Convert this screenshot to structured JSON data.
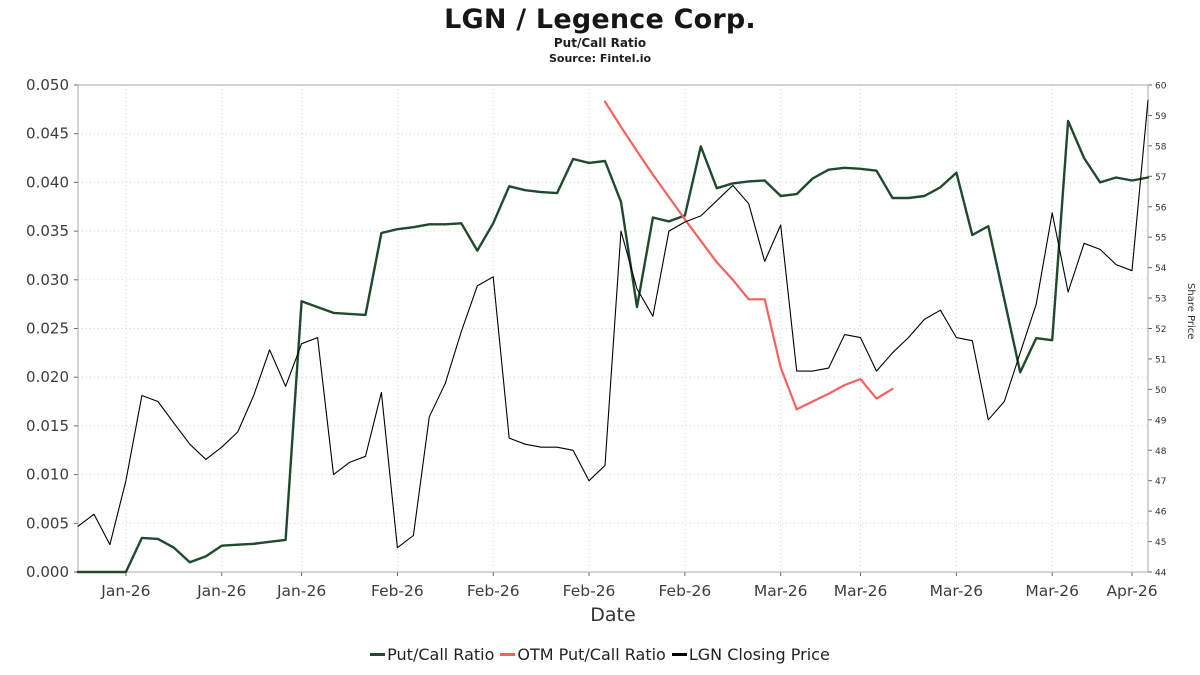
{
  "chart_data": {
    "type": "line",
    "title": "LGN / Legence Corp.",
    "subtitle": "Put/Call Ratio",
    "source": "Source: Fintel.io",
    "xlabel": "Date",
    "right_axis_label": "Share Price",
    "grid": true,
    "legend_position": "bottom",
    "left_axis": {
      "min": 0.0,
      "max": 0.05,
      "step": 0.005,
      "decimals": 3
    },
    "right_axis": {
      "min": 44,
      "max": 60,
      "step": 1
    },
    "x_ticks": [
      {
        "index": 3,
        "label": "Jan-26"
      },
      {
        "index": 9,
        "label": "Jan-26"
      },
      {
        "index": 14,
        "label": "Jan-26"
      },
      {
        "index": 20,
        "label": "Feb-26"
      },
      {
        "index": 26,
        "label": "Feb-26"
      },
      {
        "index": 32,
        "label": "Feb-26"
      },
      {
        "index": 38,
        "label": "Feb-26"
      },
      {
        "index": 44,
        "label": "Mar-26"
      },
      {
        "index": 49,
        "label": "Mar-26"
      },
      {
        "index": 55,
        "label": "Mar-26"
      },
      {
        "index": 61,
        "label": "Mar-26"
      },
      {
        "index": 66,
        "label": "Apr-26"
      }
    ],
    "series": [
      {
        "name": "Put/Call Ratio",
        "color": "#1f4a2e",
        "axis": "left",
        "width": 2.4,
        "values": [
          0,
          0,
          0,
          0,
          0.0035,
          0.0034,
          0.0025,
          0.001,
          0.0016,
          0.0027,
          0.0028,
          0.0029,
          0.0031,
          0.0033,
          0.0278,
          0.0272,
          0.0266,
          0.0265,
          0.0264,
          0.0348,
          0.0352,
          0.0354,
          0.0357,
          0.0357,
          0.0358,
          0.033,
          0.0358,
          0.0396,
          0.0392,
          0.039,
          0.0389,
          0.0424,
          0.042,
          0.0422,
          0.038,
          0.0272,
          0.0364,
          0.036,
          0.0366,
          0.0437,
          0.0394,
          0.0399,
          0.0401,
          0.0402,
          0.0386,
          0.0388,
          0.0404,
          0.0413,
          0.0415,
          0.0414,
          0.0412,
          0.0384,
          0.0384,
          0.0386,
          0.0395,
          0.041,
          0.0346,
          0.0355,
          0.028,
          0.0205,
          0.024,
          0.0238,
          0.0463,
          0.0425,
          0.04,
          0.0405,
          0.0402,
          0.0405
        ]
      },
      {
        "name": "OTM Put/Call Ratio",
        "color": "#f9615e",
        "axis": "left",
        "width": 2.2,
        "values": [
          null,
          null,
          null,
          null,
          null,
          null,
          null,
          null,
          null,
          null,
          null,
          null,
          null,
          null,
          null,
          null,
          null,
          null,
          null,
          null,
          null,
          null,
          null,
          null,
          null,
          null,
          null,
          null,
          null,
          null,
          null,
          null,
          null,
          0.0483,
          0.0457,
          0.0432,
          0.0408,
          0.0385,
          0.0362,
          0.034,
          0.0318,
          0.03,
          0.028,
          0.028,
          0.021,
          0.0167,
          0.0175,
          0.0183,
          0.0192,
          0.0198,
          0.0178,
          0.0188,
          null,
          null,
          null,
          null,
          null,
          null,
          null,
          null,
          null,
          null,
          null,
          null,
          null,
          null,
          null,
          null
        ]
      },
      {
        "name": "LGN Closing Price",
        "color": "#000000",
        "axis": "right",
        "width": 1.1,
        "values": [
          45.5,
          45.9,
          44.9,
          47.0,
          49.8,
          49.6,
          48.9,
          48.2,
          47.7,
          48.1,
          48.6,
          49.8,
          51.3,
          50.1,
          51.5,
          51.7,
          47.2,
          47.6,
          47.8,
          49.9,
          44.8,
          45.2,
          49.1,
          50.2,
          51.9,
          53.4,
          53.7,
          48.4,
          48.2,
          48.1,
          48.1,
          48.0,
          47.0,
          47.5,
          55.2,
          53.3,
          52.4,
          55.2,
          55.5,
          55.7,
          56.2,
          56.7,
          56.1,
          54.2,
          55.4,
          50.6,
          50.6,
          50.7,
          51.8,
          51.7,
          50.6,
          51.2,
          51.7,
          52.3,
          52.6,
          51.7,
          51.6,
          49.0,
          49.6,
          51.2,
          52.8,
          55.8,
          53.2,
          54.8,
          54.6,
          54.1,
          53.9,
          59.5
        ]
      }
    ],
    "colors": {
      "grid": "#d4d4d4",
      "plot_border": "#a8a8a8",
      "tick": "#666666",
      "tick_label": "#3d3d3d"
    }
  }
}
